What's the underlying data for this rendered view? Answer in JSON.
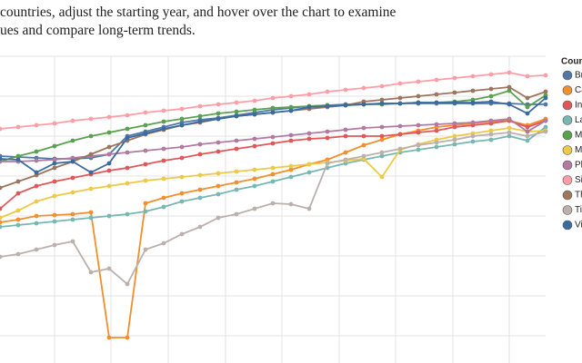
{
  "intro": [
    "countries, adjust the starting year, and hover over the chart to examine",
    "ues and compare long-term trends."
  ],
  "chart_data": {
    "type": "line",
    "legend_title": "Country",
    "grid": true,
    "legend_position": "right",
    "x": [
      0,
      1,
      2,
      3,
      4,
      5,
      6,
      7,
      8,
      9,
      10,
      11,
      12,
      13,
      14,
      15,
      16,
      17,
      18,
      19,
      20,
      21,
      22,
      23,
      24,
      25,
      26,
      27,
      28,
      29,
      30
    ],
    "xlim": [
      0,
      30
    ],
    "xticks": [
      3,
      6.1,
      9.25,
      12.4,
      15.5,
      18.65,
      21.75,
      24.9,
      28
    ],
    "ylim": [
      0,
      340
    ],
    "yticks": [
      30,
      74,
      118,
      162,
      206,
      250,
      294,
      338
    ],
    "series": [
      {
        "name": "Brunei",
        "color": "#4e79a7",
        "values": [
          228,
          227,
          226,
          225,
          225,
          226,
          230,
          250,
          255,
          260,
          265,
          268,
          270,
          273,
          276,
          279,
          281,
          283,
          284,
          285,
          285,
          286,
          286,
          286,
          286,
          286,
          286,
          286,
          286,
          285,
          285
        ]
      },
      {
        "name": "Cambodia",
        "color": "#f28e2b",
        "values": [
          155,
          158,
          162,
          163,
          164,
          166,
          28,
          28,
          176,
          182,
          187,
          191,
          195,
          199,
          203,
          208,
          213,
          219,
          224,
          232,
          240,
          246,
          252,
          256,
          260,
          262,
          264,
          266,
          267,
          262,
          269
        ]
      },
      {
        "name": "India",
        "color": "#e15759",
        "values": [
          170,
          187,
          195,
          200,
          204,
          208,
          212,
          215,
          219,
          223,
          226,
          230,
          233,
          236,
          239,
          242,
          245,
          247,
          248,
          250,
          250,
          250,
          252,
          254,
          256,
          260,
          262,
          264,
          267,
          260,
          267
        ]
      },
      {
        "name": "Laos",
        "color": "#76b7b2",
        "values": [
          150,
          152,
          154,
          156,
          158,
          160,
          162,
          164,
          167,
          172,
          178,
          182,
          186,
          191,
          195,
          200,
          205,
          210,
          215,
          220,
          224,
          228,
          232,
          235,
          238,
          241,
          244,
          246,
          250,
          245,
          260
        ]
      },
      {
        "name": "Malaysia",
        "color": "#59a14f",
        "values": [
          222,
          228,
          233,
          239,
          245,
          250,
          254,
          258,
          262,
          266,
          269,
          272,
          275,
          277,
          279,
          281,
          282,
          283,
          284,
          284,
          285,
          285,
          286,
          287,
          287,
          288,
          290,
          294,
          300,
          282,
          295
        ]
      },
      {
        "name": "Myanmar",
        "color": "#edc948",
        "values": [
          160,
          168,
          178,
          184,
          188,
          192,
          195,
          198,
          201,
          203,
          205,
          207,
          209,
          211,
          213,
          215,
          217,
          219,
          221,
          223,
          225,
          205,
          235,
          241,
          246,
          250,
          253,
          256,
          259,
          255,
          256
        ]
      },
      {
        "name": "Philippines",
        "color": "#b07aa1",
        "values": [
          222,
          222,
          223,
          224,
          226,
          228,
          230,
          232,
          234,
          236,
          238,
          241,
          243,
          245,
          247,
          249,
          251,
          253,
          255,
          257,
          259,
          260,
          261,
          262,
          263,
          264,
          265,
          267,
          269,
          255,
          267
        ]
      },
      {
        "name": "Singapore",
        "color": "#ff9da7",
        "values": [
          258,
          260,
          262,
          264,
          267,
          269,
          271,
          273,
          276,
          278,
          280,
          283,
          285,
          287,
          289,
          292,
          294,
          296,
          299,
          301,
          303,
          305,
          308,
          310,
          312,
          314,
          316,
          318,
          320,
          316,
          317
        ]
      },
      {
        "name": "Thailand",
        "color": "#9c755f",
        "values": [
          193,
          200,
          207,
          215,
          222,
          230,
          238,
          245,
          252,
          257,
          262,
          265,
          269,
          272,
          274,
          276,
          278,
          280,
          282,
          284,
          288,
          290,
          292,
          294,
          296,
          298,
          300,
          302,
          304,
          292,
          299
        ]
      },
      {
        "name": "Timor-Leste",
        "color": "#bab0ac",
        "values": [
          117,
          120,
          125,
          130,
          134,
          100,
          104,
          87,
          125,
          132,
          142,
          150,
          160,
          164,
          170,
          176,
          175,
          170,
          220,
          224,
          228,
          232,
          236,
          240,
          243,
          246,
          250,
          252,
          254,
          250,
          255
        ]
      },
      {
        "name": "Vietnam",
        "color": "#3b6aa0",
        "values": [
          225,
          224,
          210,
          220,
          222,
          210,
          220,
          248,
          253,
          258,
          262,
          266,
          269,
          272,
          274,
          276,
          278,
          282,
          283,
          284,
          285,
          286,
          286,
          287,
          287,
          287,
          287,
          288,
          285,
          275,
          292
        ]
      }
    ]
  }
}
